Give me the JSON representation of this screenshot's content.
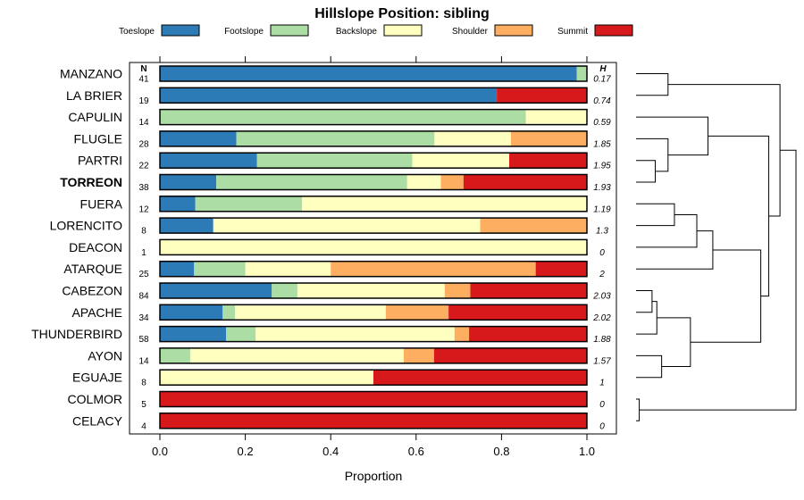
{
  "chart_data": {
    "type": "bar",
    "orientation": "horizontal",
    "stacked": true,
    "title": "Hillslope Position: sibling",
    "xlabel": "Proportion",
    "xlim": [
      0,
      1
    ],
    "xticks": [
      "0.0",
      "0.2",
      "0.4",
      "0.6",
      "0.8",
      "1.0"
    ],
    "n_header": "N",
    "h_header": "H",
    "highlight": "TORREON",
    "legend": [
      {
        "name": "Toeslope",
        "color": "#2c7bb6"
      },
      {
        "name": "Footslope",
        "color": "#abdda4"
      },
      {
        "name": "Backslope",
        "color": "#ffffbf"
      },
      {
        "name": "Shoulder",
        "color": "#fdae61"
      },
      {
        "name": "Summit",
        "color": "#d7191c"
      }
    ],
    "rows": [
      {
        "name": "MANZANO",
        "n": "41",
        "h": "0.17",
        "values": [
          0.976,
          0.024,
          0,
          0,
          0
        ]
      },
      {
        "name": "LA BRIER",
        "n": "19",
        "h": "0.74",
        "values": [
          0.789,
          0,
          0,
          0,
          0.211
        ]
      },
      {
        "name": "CAPULIN",
        "n": "14",
        "h": "0.59",
        "values": [
          0,
          0.857,
          0.143,
          0,
          0
        ]
      },
      {
        "name": "FLUGLE",
        "n": "28",
        "h": "1.85",
        "values": [
          0.179,
          0.464,
          0.179,
          0.178,
          0
        ]
      },
      {
        "name": "PARTRI",
        "n": "22",
        "h": "1.95",
        "values": [
          0.227,
          0.364,
          0.227,
          0,
          0.182
        ]
      },
      {
        "name": "TORREON",
        "n": "38",
        "h": "1.93",
        "values": [
          0.132,
          0.447,
          0.079,
          0.053,
          0.289
        ]
      },
      {
        "name": "FUERA",
        "n": "12",
        "h": "1.19",
        "values": [
          0.083,
          0.25,
          0.667,
          0,
          0
        ]
      },
      {
        "name": "LORENCITO",
        "n": "8",
        "h": "1.3",
        "values": [
          0.125,
          0,
          0.625,
          0.25,
          0
        ]
      },
      {
        "name": "DEACON",
        "n": "1",
        "h": "0",
        "values": [
          0,
          0,
          1,
          0,
          0
        ]
      },
      {
        "name": "ATARQUE",
        "n": "25",
        "h": "2",
        "values": [
          0.08,
          0.12,
          0.2,
          0.48,
          0.12
        ]
      },
      {
        "name": "CABEZON",
        "n": "84",
        "h": "2.03",
        "values": [
          0.262,
          0.06,
          0.345,
          0.06,
          0.273
        ]
      },
      {
        "name": "APACHE",
        "n": "34",
        "h": "2.02",
        "values": [
          0.147,
          0.029,
          0.353,
          0.147,
          0.324
        ]
      },
      {
        "name": "THUNDERBIRD",
        "n": "58",
        "h": "1.88",
        "values": [
          0.155,
          0.069,
          0.466,
          0.034,
          0.276
        ]
      },
      {
        "name": "AYON",
        "n": "14",
        "h": "1.57",
        "values": [
          0,
          0.071,
          0.5,
          0.071,
          0.358
        ]
      },
      {
        "name": "EGUAJE",
        "n": "8",
        "h": "1",
        "values": [
          0,
          0,
          0.5,
          0,
          0.5
        ]
      },
      {
        "name": "COLMOR",
        "n": "5",
        "h": "0",
        "values": [
          0,
          0,
          0,
          0,
          1
        ]
      },
      {
        "name": "CELACY",
        "n": "4",
        "h": "0",
        "values": [
          0,
          0,
          0,
          0,
          1
        ]
      }
    ],
    "dendrogram": {
      "leaf_order": [
        "MANZANO",
        "LA BRIER",
        "CAPULIN",
        "FLUGLE",
        "PARTRI",
        "TORREON",
        "FUERA",
        "LORENCITO",
        "DEACON",
        "ATARQUE",
        "CABEZON",
        "APACHE",
        "THUNDERBIRD",
        "AYON",
        "EGUAJE",
        "COLMOR",
        "CELACY"
      ],
      "merges": [
        {
          "a": "MANZANO",
          "b": "LA BRIER",
          "height": 0.2
        },
        {
          "a": "PARTRI",
          "b": "TORREON",
          "height": 0.12
        },
        {
          "a": "FLUGLE",
          "b": "PARTRI+TORREON",
          "height": 0.2
        },
        {
          "a": "CAPULIN",
          "b": "FLUGLE+PARTRI+TORREON",
          "height": 0.45
        },
        {
          "a": "FUERA",
          "b": "LORENCITO",
          "height": 0.24
        },
        {
          "a": "FUERA+LORENCITO",
          "b": "DEACON",
          "height": 0.38
        },
        {
          "a": "FUERA+LORENCITO+DEACON",
          "b": "ATARQUE",
          "height": 0.48
        },
        {
          "a": "CABEZON",
          "b": "APACHE",
          "height": 0.1
        },
        {
          "a": "CABEZON+APACHE",
          "b": "THUNDERBIRD",
          "height": 0.13
        },
        {
          "a": "AYON",
          "b": "EGUAJE",
          "height": 0.16
        },
        {
          "a": "CABEZON+APACHE+THUNDERBIRD",
          "b": "AYON+EGUAJE",
          "height": 0.34
        },
        {
          "a": "FUERA+LORENCITO+DEACON+ATARQUE",
          "b": "CABEZON+APACHE+THUNDERBIRD+AYON+EGUAJE",
          "height": 0.78
        },
        {
          "a": "CAPULIN+FLUGLE+PARTRI+TORREON",
          "b": "FUERA+LORENCITO+DEACON+ATARQUE+CABEZON+APACHE+THUNDERBIRD+AYON+EGUAJE",
          "height": 0.83
        },
        {
          "a": "MANZANO+LA BRIER",
          "b": "CAPULIN+FLUGLE+PARTRI+TORREON+FUERA+LORENCITO+DEACON+ATARQUE+CABEZON+APACHE+THUNDERBIRD+AYON+EGUAJE",
          "height": 0.9
        },
        {
          "a": "COLMOR",
          "b": "CELACY",
          "height": 0.02
        },
        {
          "a": "MANZANO+LA BRIER+CAPULIN+FLUGLE+PARTRI+TORREON+FUERA+LORENCITO+DEACON+ATARQUE+CABEZON+APACHE+THUNDERBIRD+AYON+EGUAJE",
          "b": "COLMOR+CELACY",
          "height": 1.0
        }
      ]
    }
  }
}
